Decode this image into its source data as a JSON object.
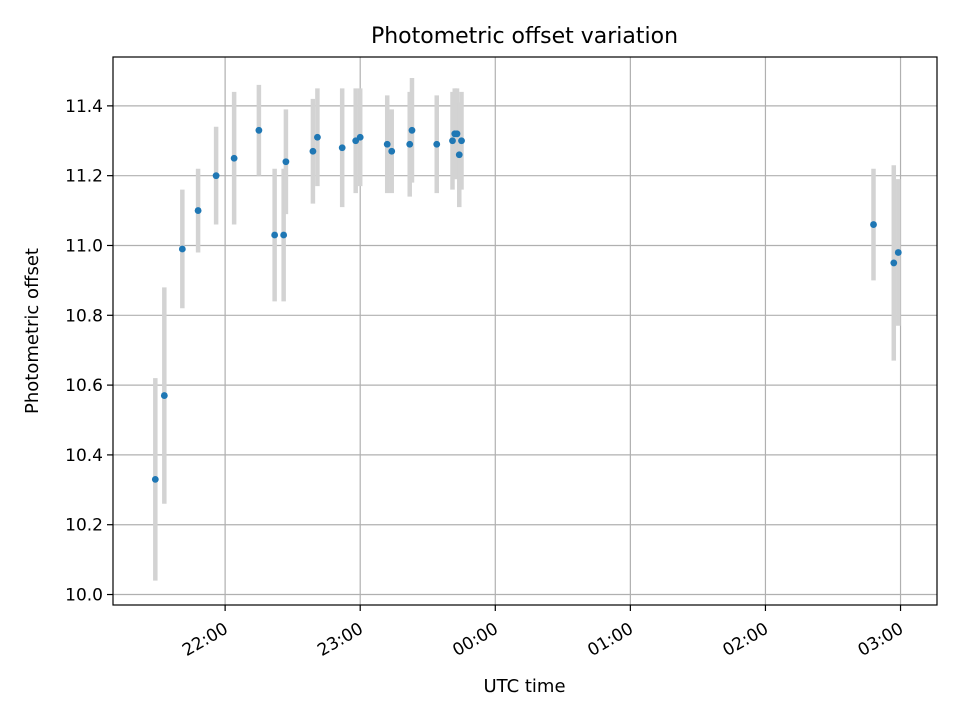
{
  "chart_data": {
    "type": "scatter",
    "title": "Photometric offset variation",
    "xlabel": "UTC time",
    "ylabel": "Photometric offset",
    "x_tick_labels": [
      "22:00",
      "23:00",
      "00:00",
      "01:00",
      "02:00",
      "03:00"
    ],
    "x_ticks_hours": [
      22,
      23,
      24,
      25,
      26,
      27
    ],
    "xlim_hours": [
      21.17,
      27.27
    ],
    "ylim": [
      9.97,
      11.54
    ],
    "y_ticks": [
      10.0,
      10.2,
      10.4,
      10.6,
      10.8,
      11.0,
      11.2,
      11.4
    ],
    "y_tick_labels": [
      "10.0",
      "10.2",
      "10.4",
      "10.6",
      "10.8",
      "11.0",
      "11.2",
      "11.4"
    ],
    "grid": true,
    "colors": {
      "marker": "#1f77b4",
      "errorbar": "#d3d3d3",
      "grid": "#b0b0b0"
    },
    "points": [
      {
        "x": "21:29",
        "y": 10.33,
        "err": 0.29
      },
      {
        "x": "21:33",
        "y": 10.57,
        "err": 0.31
      },
      {
        "x": "21:41",
        "y": 10.99,
        "err": 0.17
      },
      {
        "x": "21:48",
        "y": 11.1,
        "err": 0.12
      },
      {
        "x": "21:56",
        "y": 11.2,
        "err": 0.14
      },
      {
        "x": "22:04",
        "y": 11.25,
        "err": 0.19
      },
      {
        "x": "22:15",
        "y": 11.33,
        "err": 0.13
      },
      {
        "x": "22:22",
        "y": 11.03,
        "err": 0.19
      },
      {
        "x": "22:26",
        "y": 11.03,
        "err": 0.19
      },
      {
        "x": "22:27",
        "y": 11.24,
        "err": 0.15
      },
      {
        "x": "22:39",
        "y": 11.27,
        "err": 0.15
      },
      {
        "x": "22:41",
        "y": 11.31,
        "err": 0.14
      },
      {
        "x": "22:52",
        "y": 11.28,
        "err": 0.17
      },
      {
        "x": "22:58",
        "y": 11.3,
        "err": 0.15
      },
      {
        "x": "23:00",
        "y": 11.31,
        "err": 0.14
      },
      {
        "x": "23:12",
        "y": 11.29,
        "err": 0.14
      },
      {
        "x": "23:14",
        "y": 11.27,
        "err": 0.12
      },
      {
        "x": "23:22",
        "y": 11.29,
        "err": 0.15
      },
      {
        "x": "23:23",
        "y": 11.33,
        "err": 0.15
      },
      {
        "x": "23:34",
        "y": 11.29,
        "err": 0.14
      },
      {
        "x": "23:41",
        "y": 11.3,
        "err": 0.14
      },
      {
        "x": "23:42",
        "y": 11.32,
        "err": 0.13
      },
      {
        "x": "23:43",
        "y": 11.32,
        "err": 0.13
      },
      {
        "x": "23:44",
        "y": 11.26,
        "err": 0.15
      },
      {
        "x": "23:45",
        "y": 11.3,
        "err": 0.14
      },
      {
        "x": "02:48",
        "y": 11.06,
        "err": 0.16
      },
      {
        "x": "02:57",
        "y": 10.95,
        "err": 0.28
      },
      {
        "x": "02:59",
        "y": 10.98,
        "err": 0.21
      }
    ]
  }
}
